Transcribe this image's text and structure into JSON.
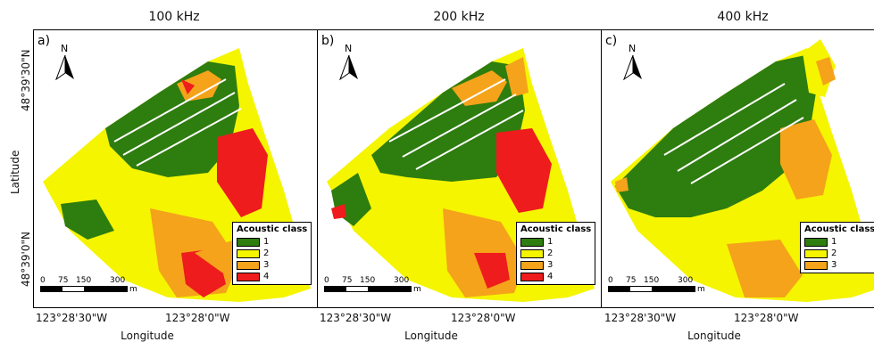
{
  "panels": [
    {
      "title": "100 kHz",
      "label": "a)",
      "classes": [
        "1",
        "2",
        "3",
        "4"
      ]
    },
    {
      "title": "200 kHz",
      "label": "b)",
      "classes": [
        "1",
        "2",
        "3",
        "4"
      ]
    },
    {
      "title": "400 kHz",
      "label": "c)",
      "classes": [
        "1",
        "2",
        "3"
      ]
    }
  ],
  "north_label": "N",
  "legend_title": "Acoustic class",
  "scale": {
    "ticks": [
      "0",
      "75",
      "150",
      "300"
    ],
    "unit": "m"
  },
  "x_ticks": [
    "123°28'30\"W",
    "123°28'0\"W"
  ],
  "x_label": "Longitude",
  "y_ticks": [
    "48°39'30\"N",
    "48°39'0\"N"
  ],
  "y_label": "Latitude",
  "colors": {
    "class1": "#2e7d0f",
    "class2": "#f5f500",
    "class3": "#f5a31a",
    "class4": "#ee1c1c"
  }
}
